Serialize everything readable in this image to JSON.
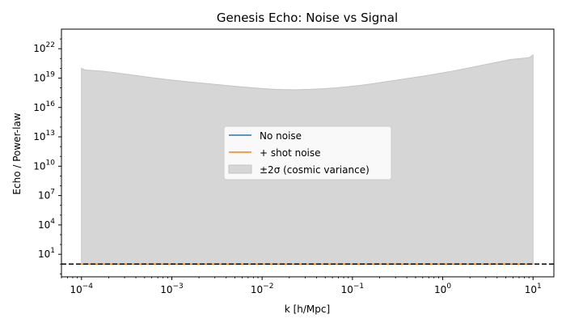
{
  "chart_data": {
    "type": "line",
    "title": "Genesis Echo: Noise vs Signal",
    "xlabel": "k [h/Mpc]",
    "ylabel": "Echo / Power-law",
    "x_scale": "log",
    "y_scale": "log",
    "xlim": [
      6e-05,
      17
    ],
    "ylim": [
      0.05,
      1e+24
    ],
    "x_ticks": [
      {
        "value": 0.0001,
        "base": "10",
        "exp": "−4"
      },
      {
        "value": 0.001,
        "base": "10",
        "exp": "−3"
      },
      {
        "value": 0.01,
        "base": "10",
        "exp": "−2"
      },
      {
        "value": 0.1,
        "base": "10",
        "exp": "−1"
      },
      {
        "value": 1,
        "base": "10",
        "exp": "0"
      },
      {
        "value": 10,
        "base": "10",
        "exp": "1"
      }
    ],
    "y_ticks": [
      {
        "value": 10.0,
        "base": "10",
        "exp": "1"
      },
      {
        "value": 10000.0,
        "base": "10",
        "exp": "4"
      },
      {
        "value": 10000000.0,
        "base": "10",
        "exp": "7"
      },
      {
        "value": 10000000000.0,
        "base": "10",
        "exp": "10"
      },
      {
        "value": 10000000000000.0,
        "base": "10",
        "exp": "13"
      },
      {
        "value": 1e+16,
        "base": "10",
        "exp": "16"
      },
      {
        "value": 1e+19,
        "base": "10",
        "exp": "19"
      },
      {
        "value": 1e+22,
        "base": "10",
        "exp": "22"
      }
    ],
    "reference_line": {
      "y": 1,
      "style": "dashed",
      "color": "#000000"
    },
    "series": [
      {
        "name": "No noise",
        "color": "#1f77b4",
        "x": [
          0.0001,
          0.001,
          0.01,
          0.1,
          1,
          10
        ],
        "y": [
          1,
          1,
          1,
          1,
          1,
          1
        ]
      },
      {
        "name": "+ shot noise",
        "color": "#ff7f0e",
        "x": [
          0.0001,
          0.001,
          0.01,
          0.1,
          1,
          10
        ],
        "y": [
          1,
          1,
          1,
          1,
          1,
          1
        ]
      }
    ],
    "band": {
      "name": "±2σ (cosmic variance)",
      "color": "#d6d6d6",
      "x": [
        0.0001,
        0.001,
        0.01,
        0.025,
        0.1,
        1,
        10
      ],
      "y_lower": [
        1,
        1,
        1,
        1,
        1,
        1,
        1
      ],
      "y_upper": [
        1e+20,
        6e+18,
        8e+17,
        5.6e+17,
        1.3e+18,
        3.2e+19,
        2.3e+21
      ]
    },
    "legend": {
      "position": "center"
    },
    "grid": false
  }
}
